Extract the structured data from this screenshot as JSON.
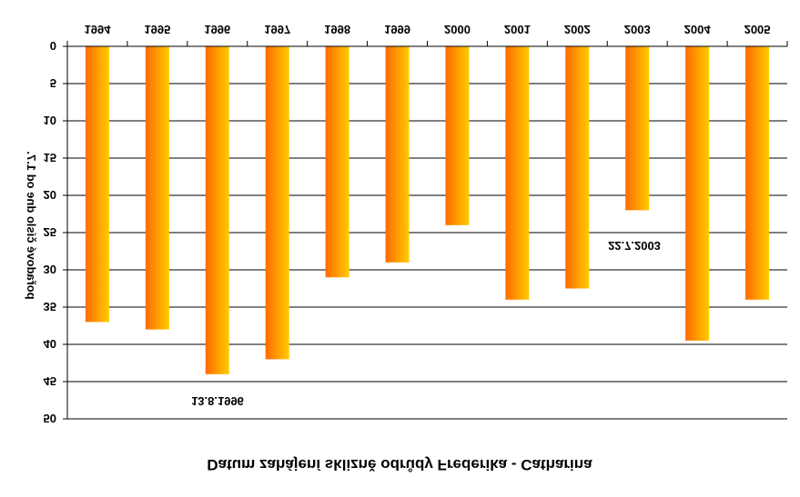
{
  "chart_data": {
    "type": "bar",
    "title": "Datum zahájení sklizně odrůdy Frederika - Catharina",
    "ylabel": "pořadové číslo dne od 1.7.",
    "xlabel": "",
    "orientation": "vertical, y-axis inverted (0 at top), categories on top",
    "categories": [
      "1994",
      "1995",
      "1996",
      "1997",
      "1998",
      "1999",
      "2000",
      "2001",
      "2002",
      "2003",
      "2004",
      "2005"
    ],
    "values": [
      37,
      38,
      44,
      42,
      31,
      29,
      24,
      34,
      32.5,
      22,
      39.5,
      34
    ],
    "ylim": [
      0,
      50
    ],
    "yticks": [
      0,
      5,
      10,
      15,
      20,
      25,
      30,
      35,
      40,
      45,
      50
    ],
    "grid": true,
    "annotations": [
      {
        "text": "13.8.1996",
        "category": "1996"
      },
      {
        "text": "22.7.2003",
        "category": "2003"
      }
    ],
    "colors": {
      "bar_light": "#FFCC00",
      "bar_dark": "#FF6600"
    },
    "text_orientation": "mirrored"
  }
}
